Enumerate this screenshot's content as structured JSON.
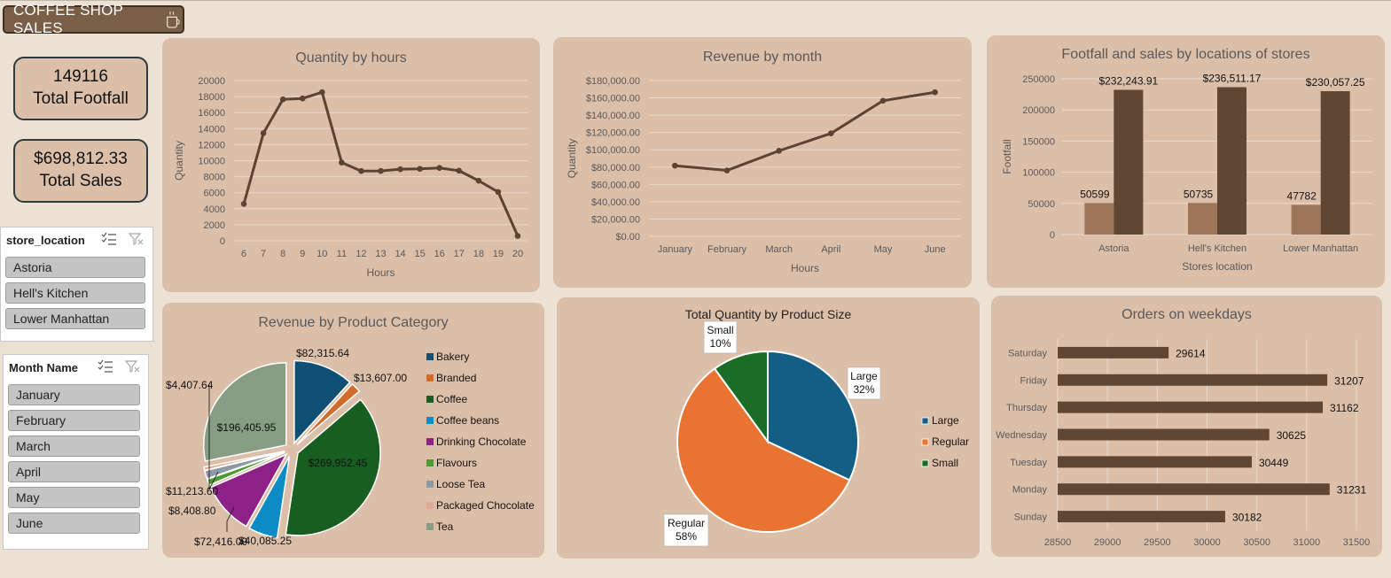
{
  "header": {
    "title": "COFFEE SHOP SALES"
  },
  "kpis": {
    "footfall_value": "149116",
    "footfall_label": "Total Footfall",
    "sales_value": "$698,812.33",
    "sales_label": "Total Sales"
  },
  "slicers": {
    "store": {
      "title": "store_location",
      "items": [
        "Astoria",
        "Hell's Kitchen",
        "Lower Manhattan"
      ]
    },
    "month": {
      "title": "Month Name",
      "items": [
        "January",
        "February",
        "March",
        "April",
        "May",
        "June"
      ]
    }
  },
  "colors": {
    "line": "#5c4432",
    "bar_dark": "#5f4733",
    "bar_light": "#9d7659",
    "card": "#dcbfa9",
    "bg": "#ede1d4"
  },
  "chart_data": [
    {
      "id": "qty_hours",
      "type": "line",
      "title": "Quantity by hours",
      "xlabel": "Hours",
      "ylabel": "Quantity",
      "x": [
        "6",
        "7",
        "8",
        "9",
        "10",
        "11",
        "12",
        "13",
        "14",
        "15",
        "16",
        "17",
        "18",
        "19",
        "20"
      ],
      "values": [
        4594,
        13428,
        17654,
        17764,
        18545,
        9766,
        8708,
        8714,
        8933,
        8979,
        9093,
        8745,
        7498,
        6092,
        603
      ],
      "ylim": [
        0,
        20000
      ],
      "yticks": [
        "0",
        "2000",
        "4000",
        "6000",
        "8000",
        "10000",
        "12000",
        "14000",
        "16000",
        "18000",
        "20000"
      ],
      "grid": true
    },
    {
      "id": "rev_month",
      "type": "line",
      "title": "Revenue by month",
      "xlabel": "Hours",
      "ylabel": "Quantity",
      "x": [
        "January",
        "February",
        "March",
        "April",
        "May",
        "June"
      ],
      "values": [
        81677.74,
        76145.19,
        98834.68,
        118941.08,
        156727.76,
        166485.88
      ],
      "ylim": [
        0,
        180000
      ],
      "yticks": [
        "$0.00",
        "$20,000.00",
        "$40,000.00",
        "$60,000.00",
        "$80,000.00",
        "$100,000.00",
        "$120,000.00",
        "$140,000.00",
        "$160,000.00",
        "$180,000.00"
      ],
      "grid": true
    },
    {
      "id": "footfall_locations",
      "type": "bar",
      "title": "Footfall and sales by locations of stores",
      "xlabel": "Stores location",
      "ylabel": "Footfall",
      "categories": [
        "Astoria",
        "Hell's Kitchen",
        "Lower Manhattan"
      ],
      "series": [
        {
          "values": [
            50599,
            50735,
            47782
          ],
          "labels": [
            "50599",
            "50735",
            "47782"
          ]
        },
        {
          "values": [
            232243.91,
            236511.17,
            230057.25
          ],
          "labels": [
            "$232,243.91",
            "$236,511.17",
            "$230,057.25"
          ]
        }
      ],
      "ylim": [
        0,
        250000
      ],
      "yticks": [
        "0",
        "50000",
        "100000",
        "150000",
        "200000",
        "250000"
      ],
      "grid": true
    },
    {
      "id": "rev_category",
      "type": "pie",
      "title": "Revenue by Product Category",
      "categories": [
        "Bakery",
        "Branded",
        "Coffee",
        "Coffee beans",
        "Drinking Chocolate",
        "Flavours",
        "Loose Tea",
        "Packaged Chocolate",
        "Tea"
      ],
      "values": [
        82315.64,
        13607.0,
        269952.45,
        40085.25,
        72416.0,
        8408.8,
        11213.6,
        4407.64,
        196405.95
      ],
      "labels": [
        "$82,315.64",
        "$13,607.00",
        "$269,952.45",
        "$40,085.25",
        "$72,416.00",
        "$8,408.80",
        "$11,213.60",
        "$4,407.64",
        "$196,405.95"
      ],
      "colors": [
        "#0f4f74",
        "#d06b2c",
        "#185e20",
        "#0c8bc5",
        "#8e2187",
        "#4c9a30",
        "#8d9aa6",
        "#e3a896",
        "#879e84"
      ],
      "legend": "right"
    },
    {
      "id": "qty_size",
      "type": "pie",
      "title": "Total Quantity by Product Size",
      "categories": [
        "Large",
        "Regular",
        "Small"
      ],
      "values": [
        32,
        58,
        10
      ],
      "labels": [
        [
          "Large",
          "32%"
        ],
        [
          "Regular",
          "58%"
        ],
        [
          "Small",
          "10%"
        ]
      ],
      "colors": [
        "#135e85",
        "#e97431",
        "#1b6c26"
      ],
      "legend": "right"
    },
    {
      "id": "weekdays",
      "type": "bar",
      "title": "Orders on weekdays",
      "categories": [
        "Saturday",
        "Friday",
        "Thursday",
        "Wednesday",
        "Tuesday",
        "Monday",
        "Sunday"
      ],
      "values": [
        29614,
        31207,
        31162,
        30625,
        30449,
        31231,
        30182
      ],
      "xlim": [
        28500,
        31500
      ],
      "xticks": [
        "28500",
        "29000",
        "29500",
        "30000",
        "30500",
        "31000",
        "31500"
      ],
      "grid": true
    }
  ]
}
